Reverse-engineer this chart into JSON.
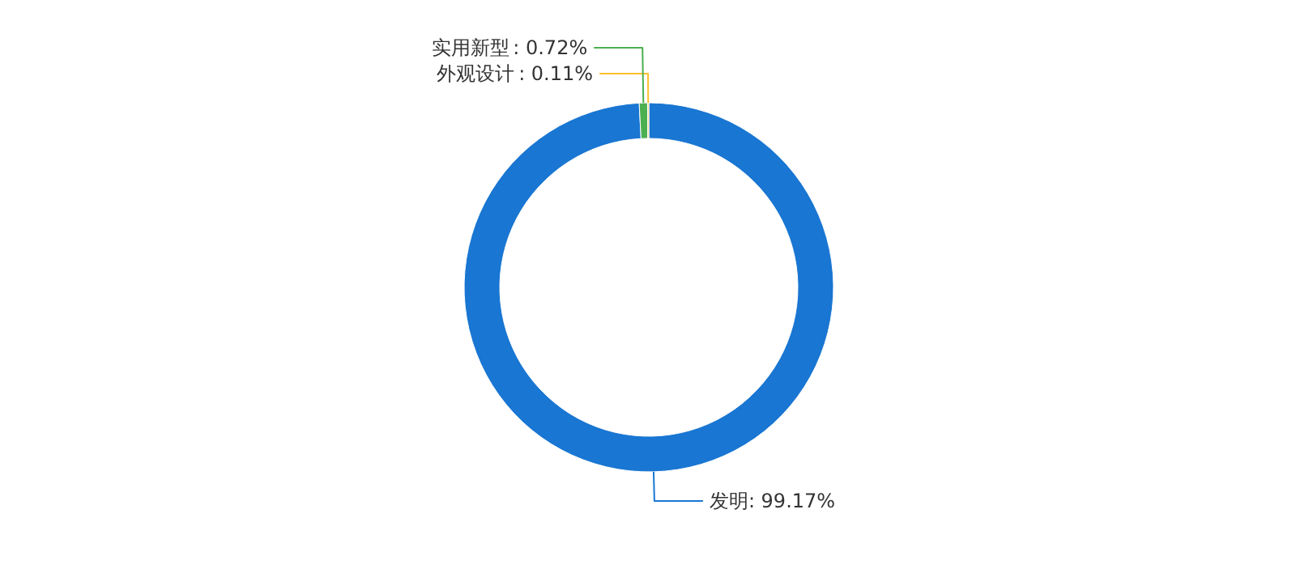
{
  "chart_data": {
    "type": "donut",
    "categories": [
      "发明",
      "实用新型",
      "外观设计"
    ],
    "values": [
      99.17,
      0.72,
      0.11
    ],
    "colors": [
      "#1976d2",
      "#4caf50",
      "#fbc02d"
    ],
    "value_labels": [
      ": 99.17%",
      ": 0.72%",
      ": 0.11%"
    ]
  }
}
